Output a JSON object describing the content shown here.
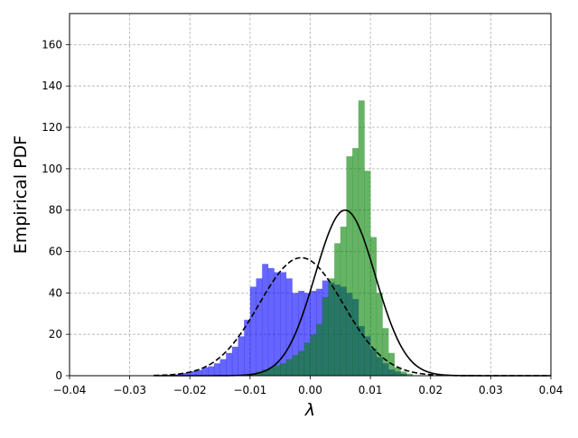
{
  "chart_data": {
    "type": "histogram",
    "xlabel": "λ",
    "ylabel": "Empirical PDF",
    "xlim": [
      -0.04,
      0.04
    ],
    "ylim": [
      0,
      175
    ],
    "grid": true,
    "x_ticks": [
      -0.04,
      -0.03,
      -0.02,
      -0.01,
      0.0,
      0.01,
      0.02,
      0.03,
      0.04
    ],
    "x_tick_labels": [
      "−0.04",
      "−0.03",
      "−0.02",
      "−0.01",
      "0.00",
      "0.01",
      "0.02",
      "0.03",
      "0.04"
    ],
    "y_ticks": [
      0,
      20,
      40,
      60,
      80,
      100,
      120,
      140,
      160
    ],
    "y_tick_labels": [
      "0",
      "20",
      "40",
      "60",
      "80",
      "100",
      "120",
      "140",
      "160"
    ],
    "series": [
      {
        "kind": "histogram",
        "color": "#0000ff",
        "alpha": 0.6,
        "bins": [
          {
            "x0": -0.025,
            "x1": -0.024,
            "y": 0.3
          },
          {
            "x0": -0.024,
            "x1": -0.023,
            "y": 0.4
          },
          {
            "x0": -0.023,
            "x1": -0.022,
            "y": 0.6
          },
          {
            "x0": -0.022,
            "x1": -0.021,
            "y": 0.9
          },
          {
            "x0": -0.021,
            "x1": -0.02,
            "y": 1.3
          },
          {
            "x0": -0.02,
            "x1": -0.019,
            "y": 2.2
          },
          {
            "x0": -0.019,
            "x1": -0.018,
            "y": 2.8
          },
          {
            "x0": -0.018,
            "x1": -0.017,
            "y": 4.0
          },
          {
            "x0": -0.017,
            "x1": -0.016,
            "y": 4.5
          },
          {
            "x0": -0.016,
            "x1": -0.015,
            "y": 6.0
          },
          {
            "x0": -0.015,
            "x1": -0.014,
            "y": 8.0
          },
          {
            "x0": -0.014,
            "x1": -0.013,
            "y": 11.0
          },
          {
            "x0": -0.013,
            "x1": -0.012,
            "y": 14.0
          },
          {
            "x0": -0.012,
            "x1": -0.011,
            "y": 19.0
          },
          {
            "x0": -0.011,
            "x1": -0.01,
            "y": 27.0
          },
          {
            "x0": -0.01,
            "x1": -0.009,
            "y": 43.0
          },
          {
            "x0": -0.009,
            "x1": -0.008,
            "y": 47.0
          },
          {
            "x0": -0.008,
            "x1": -0.007,
            "y": 54.0
          },
          {
            "x0": -0.007,
            "x1": -0.006,
            "y": 52.0
          },
          {
            "x0": -0.006,
            "x1": -0.005,
            "y": 50.0
          },
          {
            "x0": -0.005,
            "x1": -0.004,
            "y": 50.0
          },
          {
            "x0": -0.004,
            "x1": -0.003,
            "y": 47.0
          },
          {
            "x0": -0.003,
            "x1": -0.002,
            "y": 40.0
          },
          {
            "x0": -0.002,
            "x1": -0.001,
            "y": 41.0
          },
          {
            "x0": -0.001,
            "x1": 0.0,
            "y": 40.0
          },
          {
            "x0": 0.0,
            "x1": 0.001,
            "y": 41.0
          },
          {
            "x0": 0.001,
            "x1": 0.002,
            "y": 42.0
          },
          {
            "x0": 0.002,
            "x1": 0.003,
            "y": 46.0
          },
          {
            "x0": 0.003,
            "x1": 0.004,
            "y": 45.0
          },
          {
            "x0": 0.004,
            "x1": 0.005,
            "y": 44.0
          },
          {
            "x0": 0.005,
            "x1": 0.006,
            "y": 43.0
          },
          {
            "x0": 0.006,
            "x1": 0.007,
            "y": 40.0
          },
          {
            "x0": 0.007,
            "x1": 0.008,
            "y": 37.0
          },
          {
            "x0": 0.008,
            "x1": 0.009,
            "y": 24.0
          },
          {
            "x0": 0.009,
            "x1": 0.01,
            "y": 19.0
          },
          {
            "x0": 0.01,
            "x1": 0.011,
            "y": 13.0
          },
          {
            "x0": 0.011,
            "x1": 0.012,
            "y": 9.0
          },
          {
            "x0": 0.012,
            "x1": 0.013,
            "y": 6.0
          },
          {
            "x0": 0.013,
            "x1": 0.014,
            "y": 3.0
          },
          {
            "x0": 0.014,
            "x1": 0.015,
            "y": 2.0
          },
          {
            "x0": 0.015,
            "x1": 0.016,
            "y": 1.0
          }
        ]
      },
      {
        "kind": "histogram",
        "color": "#008000",
        "alpha": 0.6,
        "bins": [
          {
            "x0": -0.01,
            "x1": -0.009,
            "y": 1.0
          },
          {
            "x0": -0.009,
            "x1": -0.008,
            "y": 2.0
          },
          {
            "x0": -0.008,
            "x1": -0.007,
            "y": 3.0
          },
          {
            "x0": -0.007,
            "x1": -0.006,
            "y": 4.0
          },
          {
            "x0": -0.006,
            "x1": -0.005,
            "y": 5.0
          },
          {
            "x0": -0.005,
            "x1": -0.004,
            "y": 6.0
          },
          {
            "x0": -0.004,
            "x1": -0.003,
            "y": 8.0
          },
          {
            "x0": -0.003,
            "x1": -0.002,
            "y": 10.0
          },
          {
            "x0": -0.002,
            "x1": -0.001,
            "y": 12.0
          },
          {
            "x0": -0.001,
            "x1": 0.0,
            "y": 16.0
          },
          {
            "x0": 0.0,
            "x1": 0.001,
            "y": 20.0
          },
          {
            "x0": 0.001,
            "x1": 0.002,
            "y": 25.0
          },
          {
            "x0": 0.002,
            "x1": 0.003,
            "y": 38.0
          },
          {
            "x0": 0.003,
            "x1": 0.004,
            "y": 47.0
          },
          {
            "x0": 0.004,
            "x1": 0.005,
            "y": 64.0
          },
          {
            "x0": 0.005,
            "x1": 0.006,
            "y": 72.0
          },
          {
            "x0": 0.006,
            "x1": 0.007,
            "y": 106.0
          },
          {
            "x0": 0.007,
            "x1": 0.008,
            "y": 110.0
          },
          {
            "x0": 0.008,
            "x1": 0.009,
            "y": 133.0
          },
          {
            "x0": 0.009,
            "x1": 0.01,
            "y": 99.0
          },
          {
            "x0": 0.01,
            "x1": 0.011,
            "y": 67.0
          },
          {
            "x0": 0.011,
            "x1": 0.012,
            "y": 40.0
          },
          {
            "x0": 0.012,
            "x1": 0.013,
            "y": 23.0
          },
          {
            "x0": 0.013,
            "x1": 0.014,
            "y": 11.0
          },
          {
            "x0": 0.014,
            "x1": 0.015,
            "y": 4.0
          },
          {
            "x0": 0.015,
            "x1": 0.016,
            "y": 2.0
          },
          {
            "x0": 0.016,
            "x1": 0.017,
            "y": 1.0
          }
        ]
      },
      {
        "kind": "line",
        "color": "#000000",
        "style": "dashed",
        "distribution": "normal",
        "mean": -0.0015,
        "std": 0.007,
        "peak": 57,
        "x_range": [
          -0.026,
          0.04
        ]
      },
      {
        "kind": "line",
        "color": "#000000",
        "style": "solid",
        "distribution": "normal",
        "mean": 0.0058,
        "std": 0.005,
        "peak": 80,
        "x_range": [
          -0.026,
          0.04
        ]
      }
    ]
  }
}
